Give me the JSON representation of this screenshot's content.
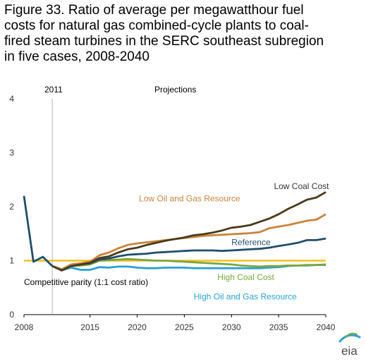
{
  "title_lines": [
    "Figure 33. Ratio of average per megawatthour fuel",
    "costs for natural gas combined-cycle plants to coal-",
    "fired steam turbines in the SERC southeast subregion",
    "in five cases, 2008-2040"
  ],
  "annotations": {
    "year_2011": "2011",
    "projections": "Projections",
    "parity": "Competitive parity (1:1 cost ratio)"
  },
  "logo_text": "eia",
  "colors": {
    "low_coal_cost": "#4a3c1a",
    "low_oil_gas": "#c8843a",
    "reference": "#1f4e6e",
    "high_coal_cost": "#7aa83a",
    "high_oil_gas": "#2aa0d8",
    "parity": "#f0c020",
    "divider": "#b0b0b0"
  },
  "chart_data": {
    "type": "line",
    "title": "Figure 33. Ratio of average per megawatthour fuel costs for natural gas combined-cycle plants to coal-fired steam turbines in the SERC southeast subregion in five cases, 2008-2040",
    "xlabel": "",
    "ylabel": "",
    "xlim": [
      2008,
      2040
    ],
    "ylim": [
      0,
      4
    ],
    "x_ticks": [
      "2008",
      "2015",
      "2020",
      "2025",
      "2030",
      "2035",
      "2040"
    ],
    "x_tick_values": [
      2008,
      2015,
      2020,
      2025,
      2030,
      2035,
      2040
    ],
    "y_ticks": [
      "0",
      "1",
      "2",
      "3",
      "4"
    ],
    "y_tick_values": [
      0,
      1,
      2,
      3,
      4
    ],
    "grid": false,
    "reference_line": {
      "label": "Competitive parity (1:1 cost ratio)",
      "y": 1.0
    },
    "divider_year": 2011,
    "x": [
      2008,
      2009,
      2010,
      2011,
      2012,
      2013,
      2014,
      2015,
      2016,
      2017,
      2018,
      2019,
      2020,
      2021,
      2022,
      2023,
      2024,
      2025,
      2026,
      2027,
      2028,
      2029,
      2030,
      2031,
      2032,
      2033,
      2034,
      2035,
      2036,
      2037,
      2038,
      2039,
      2040
    ],
    "history": {
      "x": [
        2008,
        2009,
        2010,
        2011
      ],
      "values": [
        2.2,
        0.98,
        1.07,
        0.9
      ]
    },
    "series": [
      {
        "name": "Low Coal Cost",
        "label_pos": [
          2034.5,
          2.33
        ],
        "values": [
          null,
          null,
          null,
          0.9,
          0.82,
          0.9,
          0.93,
          0.96,
          1.05,
          1.08,
          1.15,
          1.21,
          1.24,
          1.29,
          1.33,
          1.37,
          1.4,
          1.43,
          1.47,
          1.49,
          1.52,
          1.56,
          1.61,
          1.63,
          1.66,
          1.72,
          1.78,
          1.86,
          1.96,
          2.04,
          2.13,
          2.17,
          2.27
        ]
      },
      {
        "name": "Low Oil and Gas Resource",
        "label_pos": [
          2020.2,
          2.1
        ],
        "values": [
          null,
          null,
          null,
          0.9,
          0.84,
          0.93,
          0.95,
          0.98,
          1.1,
          1.15,
          1.23,
          1.29,
          1.32,
          1.34,
          1.36,
          1.38,
          1.4,
          1.42,
          1.44,
          1.46,
          1.47,
          1.48,
          1.49,
          1.5,
          1.51,
          1.53,
          1.6,
          1.63,
          1.66,
          1.7,
          1.74,
          1.76,
          1.86
        ]
      },
      {
        "name": "Reference",
        "label_pos": [
          2030,
          1.29
        ],
        "values": [
          null,
          null,
          null,
          0.9,
          0.83,
          0.9,
          0.93,
          0.95,
          1.02,
          1.04,
          1.08,
          1.11,
          1.12,
          1.13,
          1.15,
          1.16,
          1.17,
          1.18,
          1.19,
          1.19,
          1.19,
          1.18,
          1.19,
          1.2,
          1.21,
          1.22,
          1.24,
          1.27,
          1.3,
          1.33,
          1.38,
          1.38,
          1.41
        ]
      },
      {
        "name": "High Coal Cost",
        "label_pos": [
          2028.5,
          0.64
        ],
        "values": [
          null,
          null,
          null,
          0.9,
          0.82,
          0.9,
          0.91,
          0.93,
          1.0,
          1.01,
          1.02,
          1.03,
          1.02,
          1.01,
          1.0,
          1.0,
          0.99,
          0.98,
          0.97,
          0.96,
          0.95,
          0.94,
          0.93,
          0.91,
          0.9,
          0.89,
          0.9,
          0.9,
          0.91,
          0.91,
          0.92,
          0.92,
          0.93
        ]
      },
      {
        "name": "High Oil and Gas Resource",
        "label_pos": [
          2026,
          0.28
        ],
        "values": [
          null,
          null,
          null,
          0.9,
          0.82,
          0.87,
          0.83,
          0.83,
          0.88,
          0.87,
          0.89,
          0.89,
          0.87,
          0.86,
          0.86,
          0.87,
          0.87,
          0.87,
          0.86,
          0.86,
          0.86,
          0.86,
          0.86,
          0.86,
          0.86,
          0.86,
          0.87,
          0.88,
          0.9,
          0.91,
          0.91,
          0.92,
          0.92
        ]
      }
    ]
  }
}
